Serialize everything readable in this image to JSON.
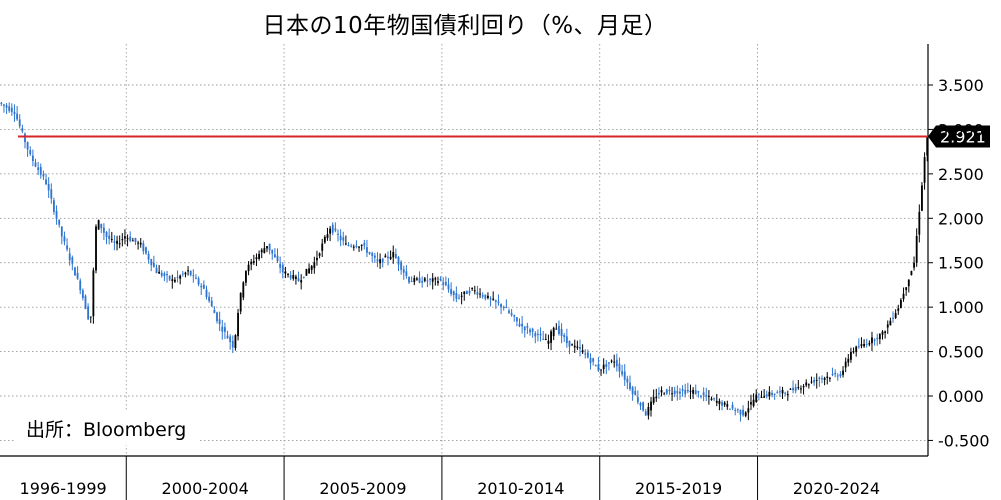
{
  "chart_data": {
    "type": "candlestick",
    "title": "日本の10年物国債利回り（%、月足）",
    "source": "出所：Bloomberg",
    "xlabel": "",
    "ylabel": "",
    "x_range": [
      1996.0,
      2025.4
    ],
    "ylim": [
      -0.5,
      3.9
    ],
    "y_ticks": [
      "3.500",
      "3.000",
      "2.500",
      "2.000",
      "1.500",
      "1.000",
      "0.500",
      "0.000",
      "-0.500"
    ],
    "y_tick_values": [
      3.5,
      3.0,
      2.5,
      2.0,
      1.5,
      1.0,
      0.5,
      0.0,
      -0.5
    ],
    "x_periods": [
      {
        "label": "1996-1999",
        "start": 1996,
        "end": 2000
      },
      {
        "label": "2000-2004",
        "start": 2000,
        "end": 2005
      },
      {
        "label": "2005-2009",
        "start": 2005,
        "end": 2010
      },
      {
        "label": "2010-2014",
        "start": 2010,
        "end": 2015
      },
      {
        "label": "2015-2019",
        "start": 2015,
        "end": 2020
      },
      {
        "label": "2020-2024",
        "start": 2020,
        "end": 2025
      }
    ],
    "grid": true,
    "reference_line": {
      "value": 2.921,
      "label": "2.921",
      "color": "#d62728"
    },
    "series": [
      {
        "kind": "candlestick-approximation",
        "up_color": "#000000",
        "down_color": "#2e75d1",
        "x": [
          1996.0,
          1996.5,
          1997.0,
          1997.5,
          1998.0,
          1998.6,
          1998.9,
          1999.1,
          1999.4,
          1999.7,
          2000.0,
          2000.5,
          2001.0,
          2001.5,
          2002.0,
          2002.5,
          2003.0,
          2003.45,
          2003.6,
          2003.8,
          2004.0,
          2004.5,
          2005.0,
          2005.5,
          2006.0,
          2006.5,
          2007.0,
          2007.5,
          2008.0,
          2008.5,
          2009.0,
          2009.5,
          2010.0,
          2010.5,
          2011.0,
          2011.5,
          2012.0,
          2012.5,
          2013.0,
          2013.4,
          2013.6,
          2014.0,
          2014.5,
          2015.0,
          2015.5,
          2016.0,
          2016.5,
          2016.8,
          2017.0,
          2018.0,
          2019.0,
          2019.6,
          2020.0,
          2021.0,
          2022.0,
          2022.7,
          2023.0,
          2023.5,
          2024.0,
          2024.5,
          2025.0,
          2025.4
        ],
        "y": [
          3.3,
          3.2,
          2.7,
          2.4,
          1.8,
          1.2,
          0.8,
          2.0,
          1.8,
          1.7,
          1.8,
          1.7,
          1.4,
          1.3,
          1.4,
          1.2,
          0.8,
          0.55,
          1.0,
          1.4,
          1.5,
          1.7,
          1.4,
          1.3,
          1.5,
          1.9,
          1.7,
          1.7,
          1.5,
          1.6,
          1.3,
          1.3,
          1.3,
          1.1,
          1.2,
          1.1,
          1.0,
          0.8,
          0.7,
          0.6,
          0.8,
          0.6,
          0.5,
          0.3,
          0.4,
          0.1,
          -0.2,
          0.0,
          0.05,
          0.05,
          -0.1,
          -0.2,
          0.0,
          0.05,
          0.2,
          0.25,
          0.5,
          0.6,
          0.7,
          1.0,
          1.5,
          2.921
        ]
      }
    ]
  }
}
